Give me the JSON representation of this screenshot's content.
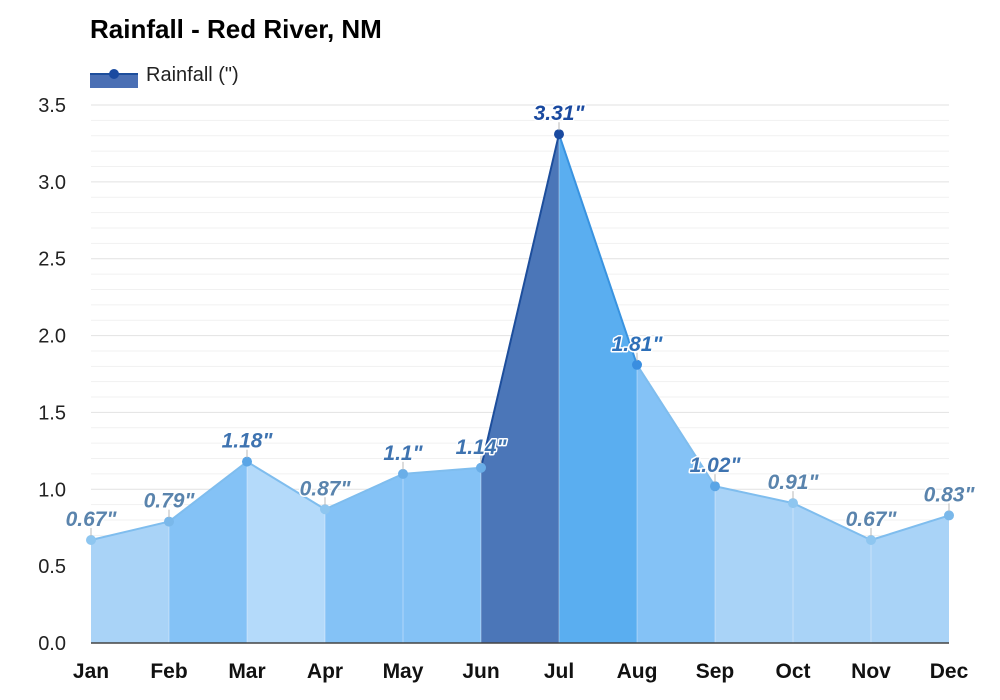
{
  "chart_data": {
    "type": "area",
    "title": "Rainfall - Red River, NM",
    "legend": [
      {
        "label": "Rainfall (\")",
        "color": "#4a6fb4"
      }
    ],
    "categories": [
      "Jan",
      "Feb",
      "Mar",
      "Apr",
      "May",
      "Jun",
      "Jul",
      "Aug",
      "Sep",
      "Oct",
      "Nov",
      "Dec"
    ],
    "series": [
      {
        "name": "Rainfall (\")",
        "values": [
          0.67,
          0.79,
          1.18,
          0.87,
          1.1,
          1.14,
          3.31,
          1.81,
          1.02,
          0.91,
          0.67,
          0.83
        ],
        "labels": [
          "0.67\"",
          "0.79\"",
          "1.18\"",
          "0.87\"",
          "1.1\"",
          "1.14\"",
          "3.31\"",
          "1.81\"",
          "1.02\"",
          "0.91\"",
          "0.67\"",
          "0.83\""
        ]
      }
    ],
    "ylim": [
      0,
      3.5
    ],
    "yticks": [
      "0.0",
      "0.5",
      "1.0",
      "1.5",
      "2.0",
      "2.5",
      "3.0",
      "3.5"
    ],
    "grid": true,
    "legend_position": "top-left",
    "colors": {
      "segments": [
        "#a9d3f7",
        "#84c2f6",
        "#b4dafa",
        "#84c2f6",
        "#84c2f6",
        "#4b76b8",
        "#5aaef0",
        "#84c2f6",
        "#a9d3f7",
        "#a9d3f7",
        "#a9d3f7"
      ],
      "line": [
        "#7fbdee",
        "#7fbdee",
        "#7fbdee",
        "#7fbdee",
        "#7fbdee",
        "#1d4e9c",
        "#3993e0",
        "#7fbdee",
        "#7fbdee",
        "#7fbdee",
        "#7fbdee"
      ],
      "points": [
        "#8ec6f0",
        "#7ab8ea",
        "#5aa5e6",
        "#8ec6f0",
        "#6aaee8",
        "#6aaee8",
        "#1a4aa0",
        "#3a8ee0",
        "#5aa5e6",
        "#8ec6f0",
        "#8ec6f0",
        "#7ab8ea"
      ],
      "labels": [
        "#5a84ad",
        "#5a84ad",
        "#3e73b0",
        "#5a84ad",
        "#3e73b0",
        "#3e73b0",
        "#1a4aa0",
        "#2d6fb8",
        "#3e73b0",
        "#5a84ad",
        "#5a84ad",
        "#5a84ad"
      ],
      "grid": "#e4e4e4"
    }
  }
}
